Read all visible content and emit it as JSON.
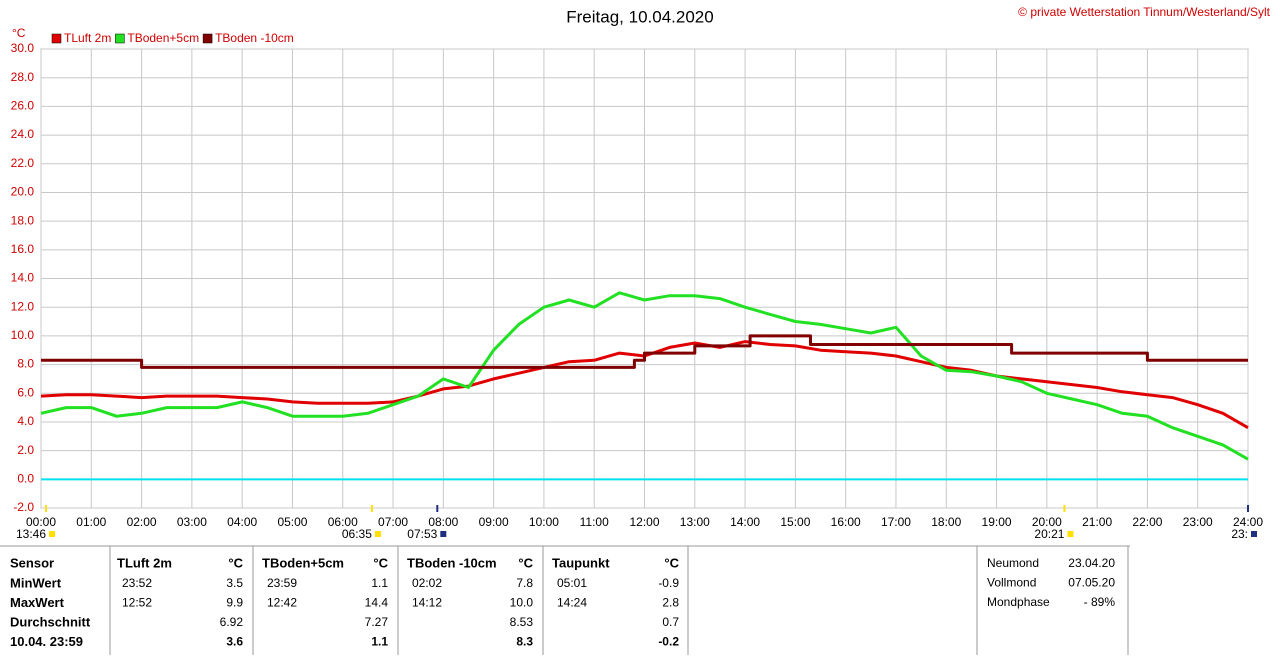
{
  "chart_data": {
    "type": "line",
    "title": "Freitag, 10.04.2020",
    "credit": "© private Wetterstation Tinnum/Westerland/Sylt",
    "unit": "°C",
    "xlim": [
      0,
      24
    ],
    "xticks": [
      {
        "value": 0,
        "label": "00:00"
      },
      {
        "value": 1,
        "label": "01:00"
      },
      {
        "value": 2,
        "label": "02:00"
      },
      {
        "value": 3,
        "label": "03:00"
      },
      {
        "value": 4,
        "label": "04:00"
      },
      {
        "value": 5,
        "label": "05:00"
      },
      {
        "value": 6,
        "label": "06:00"
      },
      {
        "value": 7,
        "label": "07:00"
      },
      {
        "value": 8,
        "label": "08:00"
      },
      {
        "value": 9,
        "label": "09:00"
      },
      {
        "value": 10,
        "label": "10:00"
      },
      {
        "value": 11,
        "label": "11:00"
      },
      {
        "value": 12,
        "label": "12:00"
      },
      {
        "value": 13,
        "label": "13:00"
      },
      {
        "value": 14,
        "label": "14:00"
      },
      {
        "value": 15,
        "label": "15:00"
      },
      {
        "value": 16,
        "label": "16:00"
      },
      {
        "value": 17,
        "label": "17:00"
      },
      {
        "value": 18,
        "label": "18:00"
      },
      {
        "value": 19,
        "label": "19:00"
      },
      {
        "value": 20,
        "label": "20:00"
      },
      {
        "value": 21,
        "label": "21:00"
      },
      {
        "value": 22,
        "label": "22:00"
      },
      {
        "value": 23,
        "label": "23:00"
      },
      {
        "value": 24,
        "label": "24:00"
      }
    ],
    "ylim": [
      -2,
      30
    ],
    "yticks": [
      {
        "value": -2,
        "label": "-2.0"
      },
      {
        "value": 0,
        "label": "0.0"
      },
      {
        "value": 2,
        "label": "2.0"
      },
      {
        "value": 4,
        "label": "4.0"
      },
      {
        "value": 6,
        "label": "6.0"
      },
      {
        "value": 8,
        "label": "8.0"
      },
      {
        "value": 10,
        "label": "10.0"
      },
      {
        "value": 12,
        "label": "12.0"
      },
      {
        "value": 14,
        "label": "14.0"
      },
      {
        "value": 16,
        "label": "16.0"
      },
      {
        "value": 18,
        "label": "18.0"
      },
      {
        "value": 20,
        "label": "20.0"
      },
      {
        "value": 22,
        "label": "22.0"
      },
      {
        "value": 24,
        "label": "24.0"
      },
      {
        "value": 26,
        "label": "26.0"
      },
      {
        "value": 28,
        "label": "28.0"
      },
      {
        "value": 30,
        "label": "30.0"
      }
    ],
    "grid": true,
    "zero_line": {
      "value": 0,
      "color": "#00e0f0"
    },
    "series": [
      {
        "name": "TLuft 2m",
        "color": "#e00000",
        "x": [
          0,
          0.5,
          1,
          1.5,
          2,
          2.5,
          3,
          3.5,
          4,
          4.5,
          5,
          5.5,
          6,
          6.5,
          7,
          7.5,
          8,
          8.5,
          9,
          9.5,
          10,
          10.5,
          11,
          11.5,
          12,
          12.5,
          13,
          13.5,
          14,
          14.5,
          15,
          15.5,
          16,
          16.5,
          17,
          17.5,
          18,
          18.5,
          19,
          19.5,
          20,
          20.5,
          21,
          21.5,
          22,
          22.5,
          23,
          23.5,
          24
        ],
        "values": [
          5.8,
          5.9,
          5.9,
          5.8,
          5.7,
          5.8,
          5.8,
          5.8,
          5.7,
          5.6,
          5.4,
          5.3,
          5.3,
          5.3,
          5.4,
          5.8,
          6.3,
          6.5,
          7.0,
          7.4,
          7.8,
          8.2,
          8.3,
          8.8,
          8.6,
          9.2,
          9.5,
          9.2,
          9.6,
          9.4,
          9.3,
          9.0,
          8.9,
          8.8,
          8.6,
          8.2,
          7.8,
          7.6,
          7.2,
          7.0,
          6.8,
          6.6,
          6.4,
          6.1,
          5.9,
          5.7,
          5.2,
          4.6,
          3.6
        ]
      },
      {
        "name": "TBoden+5cm",
        "color": "#22e022",
        "x": [
          0,
          0.5,
          1,
          1.5,
          2,
          2.5,
          3,
          3.5,
          4,
          4.5,
          5,
          5.5,
          6,
          6.5,
          7,
          7.5,
          8,
          8.5,
          9,
          9.5,
          10,
          10.5,
          11,
          11.5,
          12,
          12.5,
          13,
          13.5,
          14,
          14.5,
          15,
          15.5,
          16,
          16.5,
          17,
          17.5,
          18,
          18.5,
          19,
          19.5,
          20,
          20.5,
          21,
          21.5,
          22,
          22.5,
          23,
          23.5,
          24
        ],
        "values": [
          4.6,
          5.0,
          5.0,
          4.4,
          4.6,
          5.0,
          5.0,
          5.0,
          5.4,
          5.0,
          4.4,
          4.4,
          4.4,
          4.6,
          5.2,
          5.8,
          7.0,
          6.4,
          9.0,
          10.8,
          12.0,
          12.5,
          12.0,
          13.0,
          12.5,
          12.8,
          12.8,
          12.6,
          12.0,
          11.5,
          11.0,
          10.8,
          10.5,
          10.2,
          10.6,
          8.6,
          7.6,
          7.5,
          7.2,
          6.8,
          6.0,
          5.6,
          5.2,
          4.6,
          4.4,
          3.6,
          3.0,
          2.4,
          1.4
        ]
      },
      {
        "name": "TBoden -10cm",
        "color": "#800000",
        "x": [
          0,
          2,
          2,
          11.8,
          11.8,
          12,
          12,
          13,
          13,
          14.1,
          14.1,
          15.3,
          15.3,
          19.3,
          19.3,
          22,
          22,
          24
        ],
        "values": [
          8.3,
          8.3,
          7.8,
          7.8,
          8.3,
          8.3,
          8.8,
          8.8,
          9.3,
          9.3,
          10.0,
          10.0,
          9.4,
          9.4,
          8.8,
          8.8,
          8.3,
          8.3
        ]
      }
    ],
    "annotations": [
      {
        "x": 0.1,
        "label": "13:46",
        "color": "#ffe000"
      },
      {
        "x": 6.58,
        "label": "06:35",
        "color": "#ffe000"
      },
      {
        "x": 7.88,
        "label": "07:53",
        "color": "#203080"
      },
      {
        "x": 20.35,
        "label": "20:21",
        "color": "#ffe000"
      },
      {
        "x": 24,
        "label": "23:",
        "color": "#203080"
      }
    ]
  },
  "table": {
    "columns": [
      "Sensor",
      "TLuft 2m",
      "°C",
      "TBoden+5cm",
      "°C",
      "TBoden -10cm",
      "°C",
      "Taupunkt",
      "°C"
    ],
    "rows": [
      [
        "MinWert",
        "23:52",
        "3.5",
        "23:59",
        "1.1",
        "02:02",
        "7.8",
        "05:01",
        "-0.9"
      ],
      [
        "MaxWert",
        "12:52",
        "9.9",
        "12:42",
        "14.4",
        "14:12",
        "10.0",
        "14:24",
        "2.8"
      ],
      [
        "Durchschnitt",
        null,
        "6.92",
        null,
        "7.27",
        null,
        "8.53",
        null,
        "0.7"
      ],
      [
        "10.04. 23:59",
        null,
        "3.6",
        null,
        "1.1",
        null,
        "8.3",
        null,
        "-0.2"
      ]
    ]
  },
  "moon": {
    "rows": [
      [
        "Neumond",
        "23.04.20"
      ],
      [
        "Vollmond",
        "07.05.20"
      ],
      [
        "Mondphase",
        "- 89%"
      ]
    ]
  }
}
